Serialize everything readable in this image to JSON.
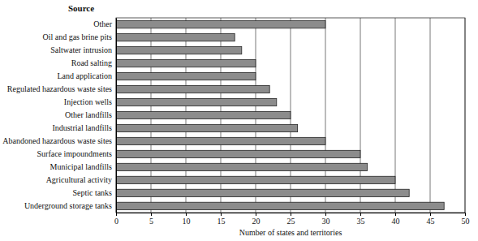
{
  "chart_data": {
    "type": "bar",
    "orientation": "horizontal",
    "ylabel": "Source",
    "xlabel": "Number of states and territories",
    "categories": [
      "Other",
      "Oil and gas brine pits",
      "Saltwater intrusion",
      "Road salting",
      "Land application",
      "Regulated hazardous waste sites",
      "Injection wells",
      "Other landfills",
      "Industrial landfills",
      "Abandoned hazardous waste sites",
      "Surface impoundments",
      "Municipal landfills",
      "Agricultural activity",
      "Septic tanks",
      "Underground storage tanks"
    ],
    "values": [
      30,
      17,
      18,
      20,
      20,
      22,
      23,
      25,
      26,
      30,
      35,
      36,
      40,
      42,
      47
    ],
    "color": "#8c8c8c",
    "xlim": [
      0,
      50
    ],
    "xticks": [
      0,
      5,
      10,
      15,
      20,
      25,
      30,
      35,
      40,
      45,
      50
    ],
    "grid": true
  }
}
